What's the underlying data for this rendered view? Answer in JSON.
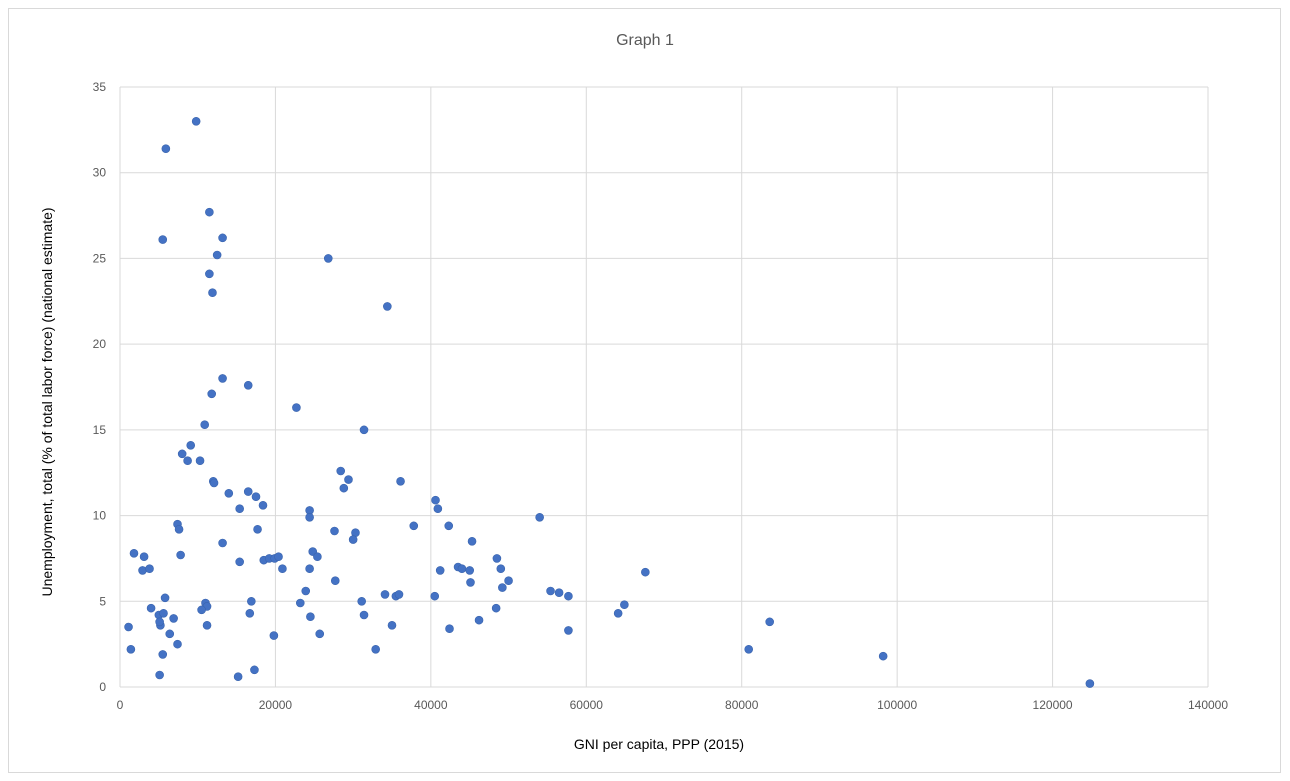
{
  "chart_data": {
    "type": "scatter",
    "title": "Graph 1",
    "xlabel": "GNI per capita, PPP (2015)",
    "ylabel": "Unemployment, total (% of total labor force) (national estimate)",
    "xlim": [
      0,
      140000
    ],
    "ylim": [
      0,
      35
    ],
    "x_ticks": [
      0,
      20000,
      40000,
      60000,
      80000,
      100000,
      120000,
      140000
    ],
    "y_ticks": [
      0,
      5,
      10,
      15,
      20,
      25,
      30,
      35
    ],
    "x_tick_labels": [
      "0",
      "20000",
      "40000",
      "60000",
      "80000",
      "100000",
      "120000",
      "140000"
    ],
    "y_tick_labels": [
      "0",
      "5",
      "10",
      "15",
      "20",
      "25",
      "30",
      "35"
    ],
    "grid": true,
    "marker_color": "#4472c4",
    "points": [
      [
        9800,
        33.0
      ],
      [
        5900,
        31.4
      ],
      [
        11500,
        27.7
      ],
      [
        5500,
        26.1
      ],
      [
        13200,
        26.2
      ],
      [
        12500,
        25.2
      ],
      [
        11500,
        24.1
      ],
      [
        11900,
        23.0
      ],
      [
        26800,
        25.0
      ],
      [
        34400,
        22.2
      ],
      [
        13200,
        18.0
      ],
      [
        16500,
        17.6
      ],
      [
        11800,
        17.1
      ],
      [
        22700,
        16.3
      ],
      [
        31400,
        15.0
      ],
      [
        10900,
        15.3
      ],
      [
        9100,
        14.1
      ],
      [
        8000,
        13.6
      ],
      [
        8700,
        13.2
      ],
      [
        10300,
        13.2
      ],
      [
        28400,
        12.6
      ],
      [
        29400,
        12.1
      ],
      [
        28800,
        11.6
      ],
      [
        36100,
        12.0
      ],
      [
        12000,
        12.0
      ],
      [
        12100,
        11.9
      ],
      [
        14000,
        11.3
      ],
      [
        16500,
        11.4
      ],
      [
        17500,
        11.1
      ],
      [
        18400,
        10.6
      ],
      [
        15400,
        10.4
      ],
      [
        24400,
        10.3
      ],
      [
        24400,
        9.9
      ],
      [
        40600,
        10.9
      ],
      [
        40900,
        10.4
      ],
      [
        54000,
        9.9
      ],
      [
        7400,
        9.5
      ],
      [
        7600,
        9.2
      ],
      [
        17700,
        9.2
      ],
      [
        27600,
        9.1
      ],
      [
        30300,
        9.0
      ],
      [
        30000,
        8.6
      ],
      [
        37800,
        9.4
      ],
      [
        42300,
        9.4
      ],
      [
        45300,
        8.5
      ],
      [
        13200,
        8.4
      ],
      [
        1800,
        7.8
      ],
      [
        3100,
        7.6
      ],
      [
        7800,
        7.7
      ],
      [
        18500,
        7.4
      ],
      [
        19200,
        7.5
      ],
      [
        19900,
        7.5
      ],
      [
        20400,
        7.6
      ],
      [
        24800,
        7.9
      ],
      [
        25400,
        7.6
      ],
      [
        15400,
        7.3
      ],
      [
        20900,
        6.9
      ],
      [
        24400,
        6.9
      ],
      [
        2900,
        6.8
      ],
      [
        3800,
        6.9
      ],
      [
        43500,
        7.0
      ],
      [
        44000,
        6.9
      ],
      [
        45000,
        6.8
      ],
      [
        41200,
        6.8
      ],
      [
        48500,
        7.5
      ],
      [
        49000,
        6.9
      ],
      [
        67600,
        6.7
      ],
      [
        27700,
        6.2
      ],
      [
        45100,
        6.1
      ],
      [
        50000,
        6.2
      ],
      [
        49200,
        5.8
      ],
      [
        55400,
        5.6
      ],
      [
        56500,
        5.5
      ],
      [
        57700,
        5.3
      ],
      [
        34100,
        5.4
      ],
      [
        35500,
        5.3
      ],
      [
        35900,
        5.4
      ],
      [
        40500,
        5.3
      ],
      [
        23900,
        5.6
      ],
      [
        5800,
        5.2
      ],
      [
        16900,
        5.0
      ],
      [
        23200,
        4.9
      ],
      [
        31100,
        5.0
      ],
      [
        11000,
        4.9
      ],
      [
        11200,
        4.7
      ],
      [
        10500,
        4.5
      ],
      [
        4000,
        4.6
      ],
      [
        64900,
        4.8
      ],
      [
        48400,
        4.6
      ],
      [
        5000,
        4.2
      ],
      [
        5600,
        4.3
      ],
      [
        6900,
        4.0
      ],
      [
        16700,
        4.3
      ],
      [
        24500,
        4.1
      ],
      [
        31400,
        4.2
      ],
      [
        46200,
        3.9
      ],
      [
        64100,
        4.3
      ],
      [
        83600,
        3.8
      ],
      [
        5200,
        3.6
      ],
      [
        5100,
        3.8
      ],
      [
        11200,
        3.6
      ],
      [
        35000,
        3.6
      ],
      [
        42400,
        3.4
      ],
      [
        57700,
        3.3
      ],
      [
        1100,
        3.5
      ],
      [
        6400,
        3.1
      ],
      [
        19800,
        3.0
      ],
      [
        25700,
        3.1
      ],
      [
        7400,
        2.5
      ],
      [
        1400,
        2.2
      ],
      [
        5500,
        1.9
      ],
      [
        32900,
        2.2
      ],
      [
        80900,
        2.2
      ],
      [
        98200,
        1.8
      ],
      [
        17300,
        1.0
      ],
      [
        5100,
        0.7
      ],
      [
        15200,
        0.6
      ],
      [
        124800,
        0.2
      ]
    ]
  }
}
